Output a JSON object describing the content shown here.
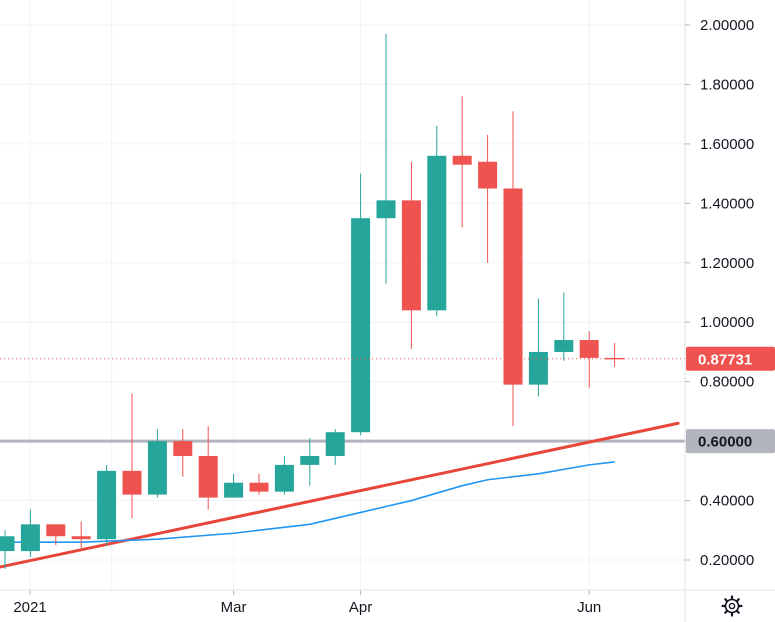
{
  "chart_data": {
    "type": "candlestick",
    "title": "",
    "xlabel": "",
    "ylabel": "",
    "ylim": [
      0.12,
      2.07
    ],
    "grid": true,
    "y_ticks": [
      "0.20000",
      "0.40000",
      "0.60000",
      "0.80000",
      "1.00000",
      "1.20000",
      "1.40000",
      "1.60000",
      "1.80000",
      "2.00000"
    ],
    "x_tick_labels": [
      {
        "label": "2021",
        "week": 0
      },
      {
        "label": "Mar",
        "week": 9
      },
      {
        "label": "Apr",
        "week": 14
      },
      {
        "label": "Jun",
        "week": 23
      }
    ],
    "candles": [
      {
        "week": 0,
        "open": 0.23,
        "high": 0.3,
        "low": 0.17,
        "close": 0.28
      },
      {
        "week": 1,
        "open": 0.23,
        "high": 0.37,
        "low": 0.21,
        "close": 0.32
      },
      {
        "week": 2,
        "open": 0.32,
        "high": 0.32,
        "low": 0.25,
        "close": 0.28
      },
      {
        "week": 3,
        "open": 0.28,
        "high": 0.33,
        "low": 0.24,
        "close": 0.27
      },
      {
        "week": 4,
        "open": 0.27,
        "high": 0.52,
        "low": 0.25,
        "close": 0.5
      },
      {
        "week": 5,
        "open": 0.5,
        "high": 0.76,
        "low": 0.34,
        "close": 0.42
      },
      {
        "week": 6,
        "open": 0.42,
        "high": 0.64,
        "low": 0.41,
        "close": 0.6
      },
      {
        "week": 7,
        "open": 0.6,
        "high": 0.64,
        "low": 0.48,
        "close": 0.55
      },
      {
        "week": 8,
        "open": 0.55,
        "high": 0.65,
        "low": 0.37,
        "close": 0.41
      },
      {
        "week": 9,
        "open": 0.41,
        "high": 0.49,
        "low": 0.41,
        "close": 0.46
      },
      {
        "week": 10,
        "open": 0.46,
        "high": 0.49,
        "low": 0.42,
        "close": 0.43
      },
      {
        "week": 11,
        "open": 0.43,
        "high": 0.55,
        "low": 0.42,
        "close": 0.52
      },
      {
        "week": 12,
        "open": 0.52,
        "high": 0.61,
        "low": 0.45,
        "close": 0.55
      },
      {
        "week": 13,
        "open": 0.55,
        "high": 0.64,
        "low": 0.52,
        "close": 0.63
      },
      {
        "week": 14,
        "open": 0.63,
        "high": 1.5,
        "low": 0.62,
        "close": 1.35
      },
      {
        "week": 15,
        "open": 1.35,
        "high": 1.97,
        "low": 1.13,
        "close": 1.41
      },
      {
        "week": 16,
        "open": 1.41,
        "high": 1.54,
        "low": 0.91,
        "close": 1.04
      },
      {
        "week": 17,
        "open": 1.04,
        "high": 1.66,
        "low": 1.02,
        "close": 1.56
      },
      {
        "week": 18,
        "open": 1.56,
        "high": 1.76,
        "low": 1.32,
        "close": 1.53
      },
      {
        "week": 19,
        "open": 1.54,
        "high": 1.63,
        "low": 1.2,
        "close": 1.45
      },
      {
        "week": 20,
        "open": 1.45,
        "high": 1.71,
        "low": 0.65,
        "close": 0.79
      },
      {
        "week": 21,
        "open": 0.79,
        "high": 1.08,
        "low": 0.75,
        "close": 0.9
      },
      {
        "week": 22,
        "open": 0.9,
        "high": 1.1,
        "low": 0.87,
        "close": 0.94
      },
      {
        "week": 23,
        "open": 0.94,
        "high": 0.97,
        "low": 0.78,
        "close": 0.88
      },
      {
        "week": 24,
        "open": 0.88,
        "high": 0.93,
        "low": 0.85,
        "close": 0.877
      }
    ],
    "moving_average": [
      {
        "week": 0,
        "value": 0.26
      },
      {
        "week": 3,
        "value": 0.26
      },
      {
        "week": 6,
        "value": 0.27
      },
      {
        "week": 9,
        "value": 0.29
      },
      {
        "week": 12,
        "value": 0.32
      },
      {
        "week": 14,
        "value": 0.36
      },
      {
        "week": 15,
        "value": 0.38
      },
      {
        "week": 16,
        "value": 0.4
      },
      {
        "week": 18,
        "value": 0.45
      },
      {
        "week": 19,
        "value": 0.47
      },
      {
        "week": 21,
        "value": 0.49
      },
      {
        "week": 23,
        "value": 0.52
      },
      {
        "week": 24,
        "value": 0.53
      }
    ],
    "trend_line": {
      "start": {
        "week": -1.1,
        "value": 0.16
      },
      "end": {
        "week": 26.5,
        "value": 0.66
      }
    },
    "horizontal_level": {
      "value": 0.6,
      "label": "0.60000"
    },
    "last_price": {
      "value": 0.877,
      "label": "0.87731"
    },
    "colors": {
      "up": "#26a69a",
      "down": "#ef5350",
      "trend_line": "#e8463a",
      "moving_average": "#2196f3",
      "level_line": "#b2b5be",
      "level_badge": "#b2b5be",
      "last_price_badge": "#ef5350",
      "grid": "#f0f3fa"
    }
  },
  "toolbar": {
    "settings_icon": "gear-icon"
  }
}
